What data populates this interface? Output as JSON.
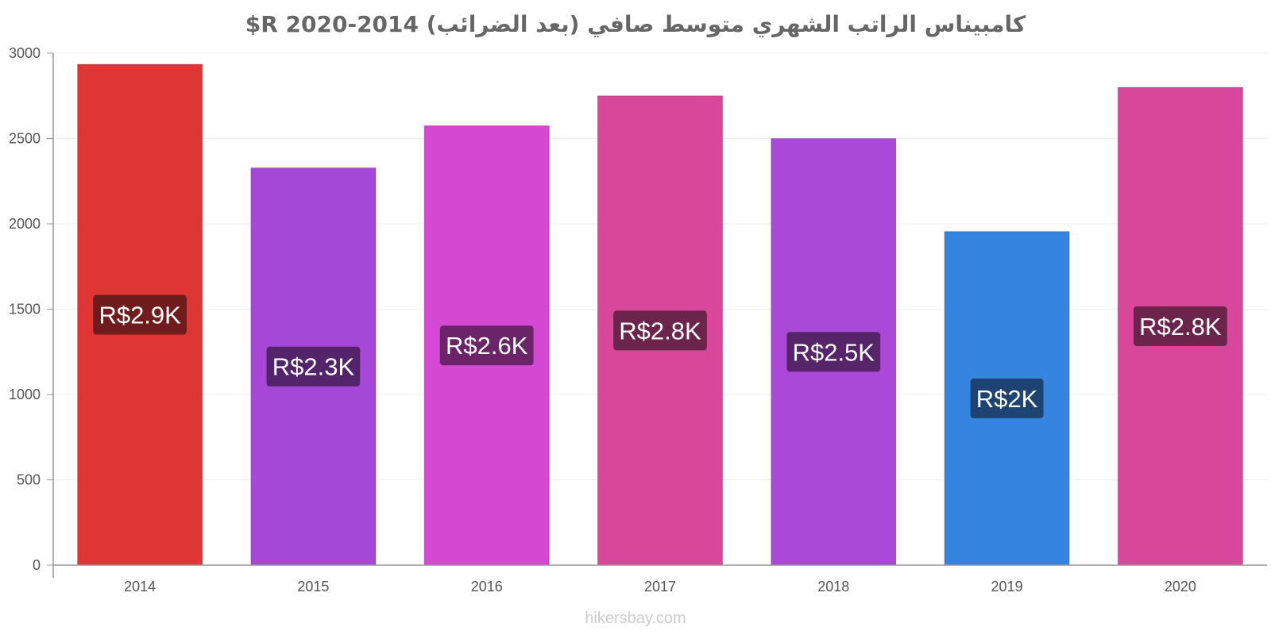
{
  "chart_data": {
    "type": "bar",
    "title": "كامبيناس الراتب الشهري متوسط صافي (بعد الضرائب) 2014-2020 R$",
    "xlabel": "",
    "ylabel": "",
    "categories": [
      "2014",
      "2015",
      "2016",
      "2017",
      "2018",
      "2019",
      "2020"
    ],
    "values": [
      2935,
      2328,
      2575,
      2750,
      2500,
      1955,
      2800
    ],
    "data_labels": [
      "R$2.9K",
      "R$2.3K",
      "R$2.6K",
      "R$2.8K",
      "R$2.5K",
      "R$2K",
      "R$2.8K"
    ],
    "bar_colors": [
      "#e03535",
      "#a548d8",
      "#d548d4",
      "#d8479a",
      "#aa48d8",
      "#3584e0",
      "#d8479a"
    ],
    "label_colors": [
      "#701c1c",
      "#532469",
      "#6b2468",
      "#6b244c",
      "#552469",
      "#1d4372",
      "#6b244c"
    ],
    "yticks": [
      0,
      500,
      1000,
      1500,
      2000,
      2500,
      3000
    ],
    "ylim": [
      0,
      3000
    ],
    "grid": true,
    "legend": "none"
  },
  "watermark": "hikersbay.com"
}
